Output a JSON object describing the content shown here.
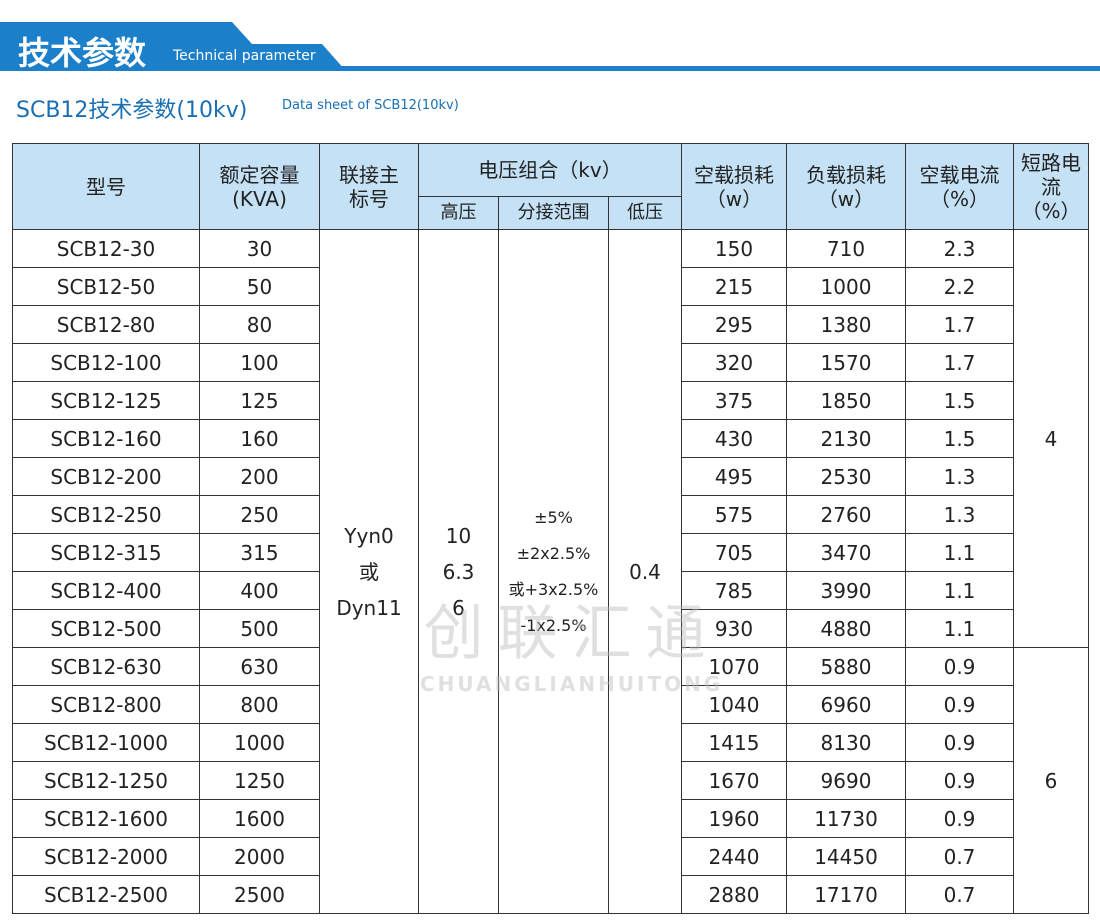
{
  "header": {
    "title": "技术参数",
    "subtitle": "Technical parameter"
  },
  "section": {
    "title": "SCB12技术参数(10kv)",
    "subtitle": "Data sheet of SCB12(10kv)"
  },
  "table": {
    "headers": {
      "model": [
        "型号"
      ],
      "capacity": [
        "额定容量",
        "(KVA)"
      ],
      "connection": [
        "联接主",
        "标号"
      ],
      "voltage": [
        "电压组合（kv）"
      ],
      "hv": [
        "高压"
      ],
      "tap": [
        "分接范围"
      ],
      "lv": [
        "低压"
      ],
      "noload_loss": [
        "空载损耗",
        "（w）"
      ],
      "load_loss": [
        "负载损耗",
        "（w）"
      ],
      "noload_current": [
        "空载电流",
        "（%）"
      ],
      "short_circuit": [
        "短路电流",
        "（%）"
      ]
    },
    "connection": [
      "Yyn0",
      "或",
      "Dyn11"
    ],
    "hv": [
      "10",
      "6.3",
      "6"
    ],
    "tap": [
      "±5%",
      "±2x2.5%",
      "或+3x2.5%",
      "-1x2.5%"
    ],
    "lv": [
      "0.4"
    ],
    "groups": [
      {
        "short_circuit": "4",
        "rows": [
          [
            "SCB12-30",
            "30",
            "150",
            "710",
            "2.3"
          ],
          [
            "SCB12-50",
            "50",
            "215",
            "1000",
            "2.2"
          ],
          [
            "SCB12-80",
            "80",
            "295",
            "1380",
            "1.7"
          ],
          [
            "SCB12-100",
            "100",
            "320",
            "1570",
            "1.7"
          ],
          [
            "SCB12-125",
            "125",
            "375",
            "1850",
            "1.5"
          ],
          [
            "SCB12-160",
            "160",
            "430",
            "2130",
            "1.5"
          ],
          [
            "SCB12-200",
            "200",
            "495",
            "2530",
            "1.3"
          ],
          [
            "SCB12-250",
            "250",
            "575",
            "2760",
            "1.3"
          ],
          [
            "SCB12-315",
            "315",
            "705",
            "3470",
            "1.1"
          ],
          [
            "SCB12-400",
            "400",
            "785",
            "3990",
            "1.1"
          ],
          [
            "SCB12-500",
            "500",
            "930",
            "4880",
            "1.1"
          ]
        ]
      },
      {
        "short_circuit": "6",
        "rows": [
          [
            "SCB12-630",
            "630",
            "1070",
            "5880",
            "0.9"
          ],
          [
            "SCB12-800",
            "800",
            "1040",
            "6960",
            "0.9"
          ],
          [
            "SCB12-1000",
            "1000",
            "1415",
            "8130",
            "0.9"
          ],
          [
            "SCB12-1250",
            "1250",
            "1670",
            "9690",
            "0.9"
          ],
          [
            "SCB12-1600",
            "1600",
            "1960",
            "11730",
            "0.9"
          ],
          [
            "SCB12-2000",
            "2000",
            "2440",
            "14450",
            "0.7"
          ],
          [
            "SCB12-2500",
            "2500",
            "2880",
            "17170",
            "0.7"
          ]
        ]
      }
    ]
  },
  "watermark": {
    "title": "创联汇通",
    "subtitle": "CHUANGLIANHUITONG"
  }
}
